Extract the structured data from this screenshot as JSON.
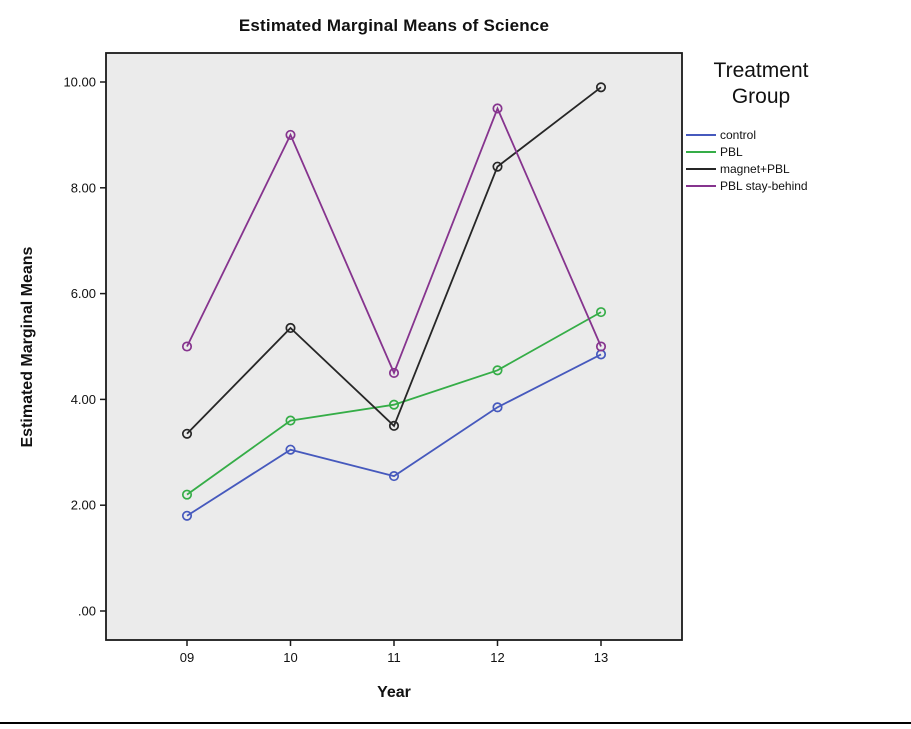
{
  "chart_data": {
    "type": "line",
    "title": "Estimated Marginal Means of Science",
    "xlabel": "Year",
    "ylabel": "Estimated Marginal Means",
    "legend_title": "Treatment Group",
    "legend_position": "right",
    "grid": false,
    "plot_background": "#ebebeb",
    "frame_color": "#1a1a1a",
    "categories": [
      "09",
      "10",
      "11",
      "12",
      "13"
    ],
    "y_tick_labels": [
      ".00",
      "2.00",
      "4.00",
      "6.00",
      "8.00",
      "10.00"
    ],
    "y_tick_values": [
      0,
      2,
      4,
      6,
      8,
      10
    ],
    "ylim": [
      0,
      10
    ],
    "marker": "open-circle",
    "series": [
      {
        "name": "control",
        "color": "#4659bd",
        "values": [
          1.8,
          3.05,
          2.55,
          3.85,
          4.85
        ]
      },
      {
        "name": "PBL",
        "color": "#35ad47",
        "values": [
          2.2,
          3.6,
          3.9,
          4.55,
          5.65
        ]
      },
      {
        "name": "magnet+PBL",
        "color": "#262626",
        "values": [
          3.35,
          5.35,
          3.5,
          8.4,
          9.9
        ]
      },
      {
        "name": "PBL stay-behind",
        "color": "#86348e",
        "values": [
          5.0,
          9.0,
          4.5,
          9.5,
          5.0
        ]
      }
    ]
  }
}
